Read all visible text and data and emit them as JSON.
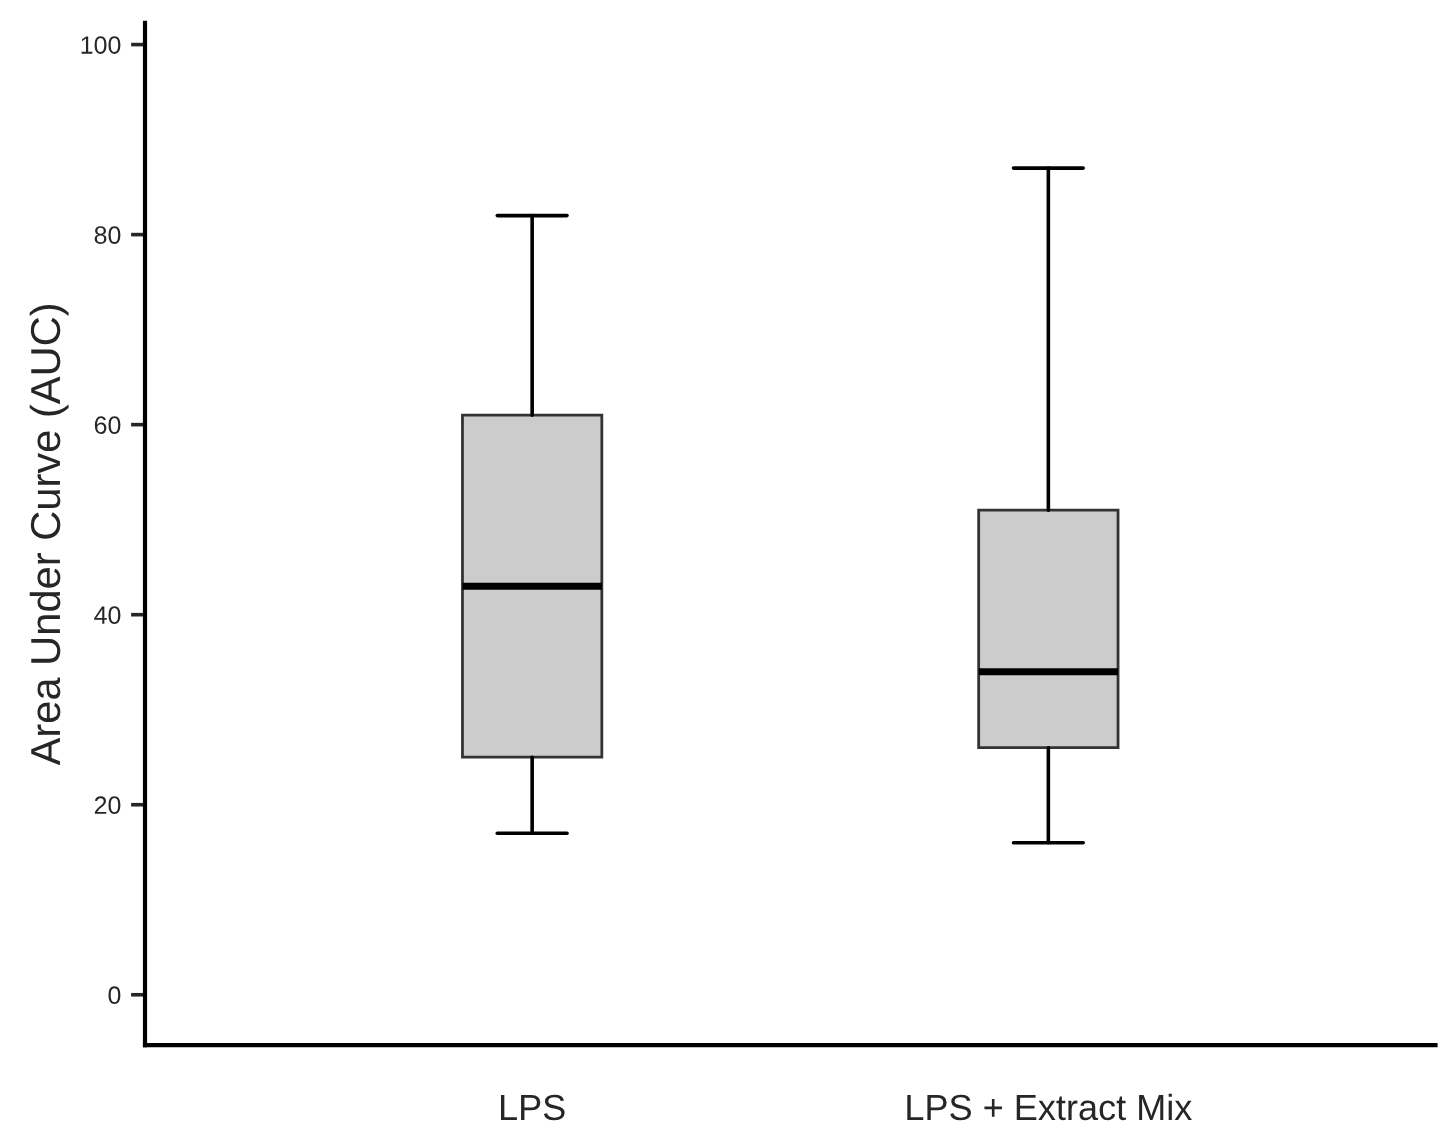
{
  "chart_data": {
    "type": "box",
    "ylabel": "Area Under Curve (AUC)",
    "categories": [
      "LPS",
      "LPS + Extract Mix"
    ],
    "boxes": [
      {
        "low": 17,
        "q1": 25,
        "median": 43,
        "q3": 61,
        "high": 82
      },
      {
        "low": 16,
        "q1": 26,
        "median": 34,
        "q3": 51,
        "high": 87
      }
    ],
    "color": "#cccccc",
    "ylim": [
      -5.3,
      102.3
    ],
    "yticks": [
      0,
      20,
      40,
      60,
      80,
      100
    ],
    "grid": false
  }
}
